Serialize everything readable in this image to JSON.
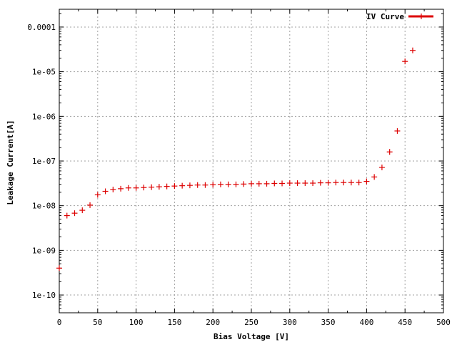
{
  "chart_data": {
    "type": "scatter",
    "xlabel": "Bias Voltage [V]",
    "ylabel": "Leakage Current[A]",
    "xlim": [
      0,
      500
    ],
    "ylim": [
      4e-11,
      0.00025
    ],
    "y_scale": "log",
    "grid": true,
    "legend_position": "top-right",
    "x_ticks": [
      0,
      50,
      100,
      150,
      200,
      250,
      300,
      350,
      400,
      450,
      500
    ],
    "x_tick_labels": [
      "0",
      "50",
      "100",
      "150",
      "200",
      "250",
      "300",
      "350",
      "400",
      "450",
      "500"
    ],
    "y_ticks": [
      1e-10,
      1e-09,
      1e-08,
      1e-07,
      1e-06,
      1e-05,
      0.0001
    ],
    "y_tick_labels": [
      "1e-10",
      "1e-09",
      "1e-08",
      "1e-07",
      "1e-06",
      "1e-05",
      "0.0001"
    ],
    "series": [
      {
        "name": "IV Curve",
        "color": "#dd0000",
        "marker": "plus",
        "x": [
          0,
          10,
          20,
          30,
          40,
          50,
          60,
          70,
          80,
          90,
          100,
          110,
          120,
          130,
          140,
          150,
          160,
          170,
          180,
          190,
          200,
          210,
          220,
          230,
          240,
          250,
          260,
          270,
          280,
          290,
          300,
          310,
          320,
          330,
          340,
          350,
          360,
          370,
          380,
          390,
          400,
          410,
          420,
          430,
          440,
          450,
          460
        ],
        "y": [
          4e-10,
          6e-09,
          6.8e-09,
          7.9e-09,
          1.03e-08,
          1.75e-08,
          2.1e-08,
          2.3e-08,
          2.4e-08,
          2.5e-08,
          2.5e-08,
          2.55e-08,
          2.6e-08,
          2.65e-08,
          2.7e-08,
          2.75e-08,
          2.8e-08,
          2.85e-08,
          2.9e-08,
          2.9e-08,
          2.95e-08,
          3e-08,
          3e-08,
          3e-08,
          3.05e-08,
          3.1e-08,
          3.1e-08,
          3.1e-08,
          3.15e-08,
          3.15e-08,
          3.2e-08,
          3.2e-08,
          3.2e-08,
          3.2e-08,
          3.25e-08,
          3.25e-08,
          3.3e-08,
          3.3e-08,
          3.3e-08,
          3.3e-08,
          3.5e-08,
          4.4e-08,
          7.2e-08,
          1.6e-07,
          4.7e-07,
          1.7e-05,
          3e-05
        ]
      }
    ]
  }
}
